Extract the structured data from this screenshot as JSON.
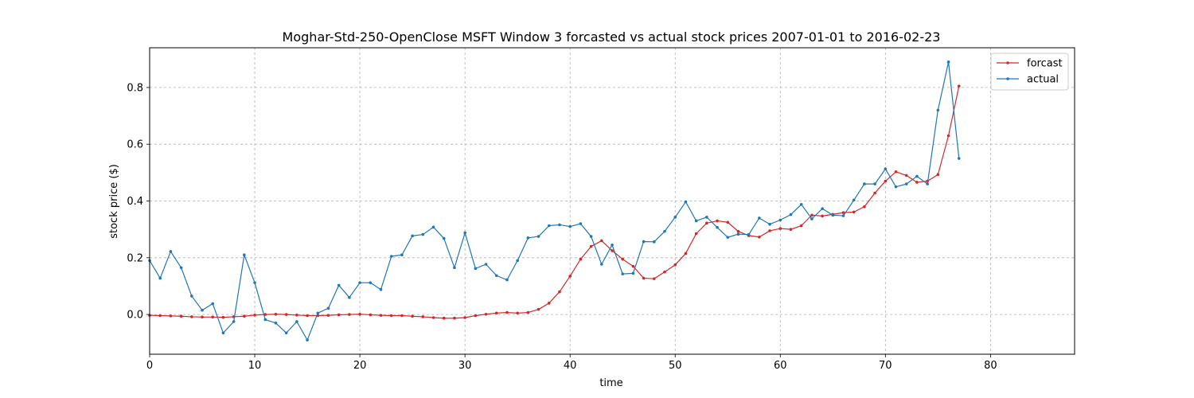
{
  "chart_data": {
    "type": "line",
    "title": "Moghar-Std-250-OpenClose MSFT Window 3 forcasted vs actual stock prices 2007-01-01 to 2016-02-23",
    "xlabel": "time",
    "ylabel": "stock price ($)",
    "xlim": [
      0,
      88
    ],
    "ylim": [
      -0.14,
      0.94
    ],
    "xticks": [
      0,
      10,
      20,
      30,
      40,
      50,
      60,
      70,
      80
    ],
    "yticks": [
      0.0,
      0.2,
      0.4,
      0.6,
      0.8
    ],
    "xtick_labels": [
      "0",
      "10",
      "20",
      "30",
      "40",
      "50",
      "60",
      "70",
      "80"
    ],
    "ytick_labels": [
      "0.0",
      "0.2",
      "0.4",
      "0.6",
      "0.8"
    ],
    "grid": true,
    "legend_position": "top-right",
    "series": [
      {
        "name": "forcast",
        "color": "#d62728",
        "x": [
          0,
          1,
          2,
          3,
          4,
          5,
          6,
          7,
          8,
          9,
          10,
          11,
          12,
          13,
          14,
          15,
          16,
          17,
          18,
          19,
          20,
          21,
          22,
          23,
          24,
          25,
          26,
          27,
          28,
          29,
          30,
          31,
          32,
          33,
          34,
          35,
          36,
          37,
          38,
          39,
          40,
          41,
          42,
          43,
          44,
          45,
          46,
          47,
          48,
          49,
          50,
          51,
          52,
          53,
          54,
          55,
          56,
          57,
          58,
          59,
          60,
          61,
          62,
          63,
          64,
          65,
          66,
          67,
          68,
          69,
          70,
          71,
          72,
          73,
          74,
          75,
          76,
          77
        ],
        "values": [
          -0.003,
          -0.004,
          -0.005,
          -0.006,
          -0.008,
          -0.009,
          -0.009,
          -0.01,
          -0.008,
          -0.006,
          -0.002,
          0.0,
          0.001,
          0.0,
          -0.002,
          -0.004,
          -0.004,
          -0.003,
          -0.001,
          0.0,
          0.001,
          -0.001,
          -0.003,
          -0.004,
          -0.004,
          -0.006,
          -0.008,
          -0.011,
          -0.013,
          -0.013,
          -0.011,
          -0.004,
          0.001,
          0.005,
          0.007,
          0.005,
          0.007,
          0.018,
          0.04,
          0.08,
          0.135,
          0.195,
          0.24,
          0.26,
          0.225,
          0.195,
          0.17,
          0.128,
          0.126,
          0.15,
          0.175,
          0.215,
          0.285,
          0.322,
          0.33,
          0.325,
          0.293,
          0.278,
          0.273,
          0.295,
          0.303,
          0.3,
          0.313,
          0.35,
          0.347,
          0.353,
          0.359,
          0.361,
          0.38,
          0.428,
          0.47,
          0.503,
          0.49,
          0.466,
          0.47,
          0.493,
          0.63,
          0.805
        ]
      },
      {
        "name": "actual",
        "color": "#1f77b4",
        "x": [
          0,
          1,
          2,
          3,
          4,
          5,
          6,
          7,
          8,
          9,
          10,
          11,
          12,
          13,
          14,
          15,
          16,
          17,
          18,
          19,
          20,
          21,
          22,
          23,
          24,
          25,
          26,
          27,
          28,
          29,
          30,
          31,
          32,
          33,
          34,
          35,
          36,
          37,
          38,
          39,
          40,
          41,
          42,
          43,
          44,
          45,
          46,
          47,
          48,
          49,
          50,
          51,
          52,
          53,
          54,
          55,
          56,
          57,
          58,
          59,
          60,
          61,
          62,
          63,
          64,
          65,
          66,
          67,
          68,
          69,
          70,
          71,
          72,
          73,
          74,
          75,
          76,
          77
        ],
        "values": [
          0.19,
          0.128,
          0.222,
          0.165,
          0.065,
          0.015,
          0.038,
          -0.065,
          -0.025,
          0.21,
          0.112,
          -0.018,
          -0.03,
          -0.065,
          -0.025,
          -0.09,
          0.005,
          0.022,
          0.103,
          0.06,
          0.112,
          0.112,
          0.088,
          0.205,
          0.21,
          0.277,
          0.282,
          0.308,
          0.268,
          0.165,
          0.288,
          0.162,
          0.177,
          0.137,
          0.122,
          0.19,
          0.27,
          0.275,
          0.313,
          0.316,
          0.31,
          0.32,
          0.275,
          0.177,
          0.245,
          0.143,
          0.145,
          0.257,
          0.256,
          0.293,
          0.343,
          0.397,
          0.33,
          0.343,
          0.307,
          0.272,
          0.283,
          0.282,
          0.34,
          0.318,
          0.333,
          0.352,
          0.388,
          0.337,
          0.373,
          0.35,
          0.348,
          0.403,
          0.46,
          0.46,
          0.513,
          0.45,
          0.46,
          0.487,
          0.46,
          0.72,
          0.89,
          0.55
        ]
      }
    ]
  }
}
